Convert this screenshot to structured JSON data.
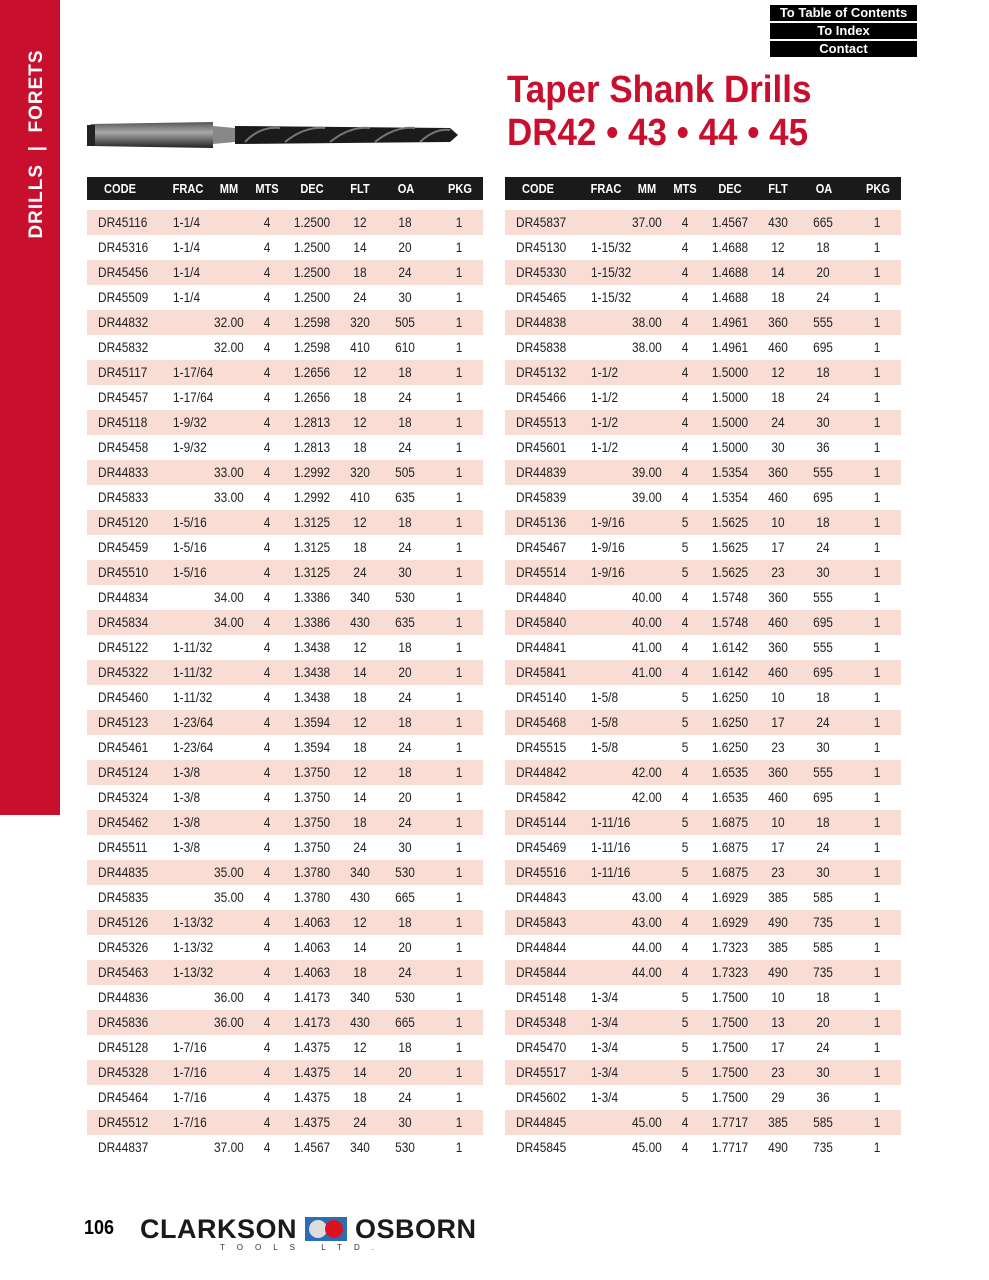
{
  "sidebar": {
    "label": "DRILLS  |  FORETS",
    "color": "#c8102e"
  },
  "nav": {
    "toc": "To Table of Contents",
    "index": "To Index",
    "contact": "Contact"
  },
  "title": {
    "line1": "Taper Shank Drills",
    "line2": "DR42 • 43 • 44 • 45",
    "color": "#c8102e"
  },
  "table": {
    "headers": [
      "CODE",
      "FRAC",
      "MM",
      "MTS",
      "DEC",
      "FLT",
      "OA",
      "PKG"
    ],
    "row_stripe_color": "#f9ddd4",
    "left": [
      [
        "DR45116",
        "1-1/4",
        "",
        "4",
        "1.2500",
        "12",
        "18",
        "1"
      ],
      [
        "DR45316",
        "1-1/4",
        "",
        "4",
        "1.2500",
        "14",
        "20",
        "1"
      ],
      [
        "DR45456",
        "1-1/4",
        "",
        "4",
        "1.2500",
        "18",
        "24",
        "1"
      ],
      [
        "DR45509",
        "1-1/4",
        "",
        "4",
        "1.2500",
        "24",
        "30",
        "1"
      ],
      [
        "DR44832",
        "",
        "32.00",
        "4",
        "1.2598",
        "320",
        "505",
        "1"
      ],
      [
        "DR45832",
        "",
        "32.00",
        "4",
        "1.2598",
        "410",
        "610",
        "1"
      ],
      [
        "DR45117",
        "1-17/64",
        "",
        "4",
        "1.2656",
        "12",
        "18",
        "1"
      ],
      [
        "DR45457",
        "1-17/64",
        "",
        "4",
        "1.2656",
        "18",
        "24",
        "1"
      ],
      [
        "DR45118",
        "1-9/32",
        "",
        "4",
        "1.2813",
        "12",
        "18",
        "1"
      ],
      [
        "DR45458",
        "1-9/32",
        "",
        "4",
        "1.2813",
        "18",
        "24",
        "1"
      ],
      [
        "DR44833",
        "",
        "33.00",
        "4",
        "1.2992",
        "320",
        "505",
        "1"
      ],
      [
        "DR45833",
        "",
        "33.00",
        "4",
        "1.2992",
        "410",
        "635",
        "1"
      ],
      [
        "DR45120",
        "1-5/16",
        "",
        "4",
        "1.3125",
        "12",
        "18",
        "1"
      ],
      [
        "DR45459",
        "1-5/16",
        "",
        "4",
        "1.3125",
        "18",
        "24",
        "1"
      ],
      [
        "DR45510",
        "1-5/16",
        "",
        "4",
        "1.3125",
        "24",
        "30",
        "1"
      ],
      [
        "DR44834",
        "",
        "34.00",
        "4",
        "1.3386",
        "340",
        "530",
        "1"
      ],
      [
        "DR45834",
        "",
        "34.00",
        "4",
        "1.3386",
        "430",
        "635",
        "1"
      ],
      [
        "DR45122",
        "1-11/32",
        "",
        "4",
        "1.3438",
        "12",
        "18",
        "1"
      ],
      [
        "DR45322",
        "1-11/32",
        "",
        "4",
        "1.3438",
        "14",
        "20",
        "1"
      ],
      [
        "DR45460",
        "1-11/32",
        "",
        "4",
        "1.3438",
        "18",
        "24",
        "1"
      ],
      [
        "DR45123",
        "1-23/64",
        "",
        "4",
        "1.3594",
        "12",
        "18",
        "1"
      ],
      [
        "DR45461",
        "1-23/64",
        "",
        "4",
        "1.3594",
        "18",
        "24",
        "1"
      ],
      [
        "DR45124",
        "1-3/8",
        "",
        "4",
        "1.3750",
        "12",
        "18",
        "1"
      ],
      [
        "DR45324",
        "1-3/8",
        "",
        "4",
        "1.3750",
        "14",
        "20",
        "1"
      ],
      [
        "DR45462",
        "1-3/8",
        "",
        "4",
        "1.3750",
        "18",
        "24",
        "1"
      ],
      [
        "DR45511",
        "1-3/8",
        "",
        "4",
        "1.3750",
        "24",
        "30",
        "1"
      ],
      [
        "DR44835",
        "",
        "35.00",
        "4",
        "1.3780",
        "340",
        "530",
        "1"
      ],
      [
        "DR45835",
        "",
        "35.00",
        "4",
        "1.3780",
        "430",
        "665",
        "1"
      ],
      [
        "DR45126",
        "1-13/32",
        "",
        "4",
        "1.4063",
        "12",
        "18",
        "1"
      ],
      [
        "DR45326",
        "1-13/32",
        "",
        "4",
        "1.4063",
        "14",
        "20",
        "1"
      ],
      [
        "DR45463",
        "1-13/32",
        "",
        "4",
        "1.4063",
        "18",
        "24",
        "1"
      ],
      [
        "DR44836",
        "",
        "36.00",
        "4",
        "1.4173",
        "340",
        "530",
        "1"
      ],
      [
        "DR45836",
        "",
        "36.00",
        "4",
        "1.4173",
        "430",
        "665",
        "1"
      ],
      [
        "DR45128",
        "1-7/16",
        "",
        "4",
        "1.4375",
        "12",
        "18",
        "1"
      ],
      [
        "DR45328",
        "1-7/16",
        "",
        "4",
        "1.4375",
        "14",
        "20",
        "1"
      ],
      [
        "DR45464",
        "1-7/16",
        "",
        "4",
        "1.4375",
        "18",
        "24",
        "1"
      ],
      [
        "DR45512",
        "1-7/16",
        "",
        "4",
        "1.4375",
        "24",
        "30",
        "1"
      ],
      [
        "DR44837",
        "",
        "37.00",
        "4",
        "1.4567",
        "340",
        "530",
        "1"
      ]
    ],
    "right": [
      [
        "DR45837",
        "",
        "37.00",
        "4",
        "1.4567",
        "430",
        "665",
        "1"
      ],
      [
        "DR45130",
        "1-15/32",
        "",
        "4",
        "1.4688",
        "12",
        "18",
        "1"
      ],
      [
        "DR45330",
        "1-15/32",
        "",
        "4",
        "1.4688",
        "14",
        "20",
        "1"
      ],
      [
        "DR45465",
        "1-15/32",
        "",
        "4",
        "1.4688",
        "18",
        "24",
        "1"
      ],
      [
        "DR44838",
        "",
        "38.00",
        "4",
        "1.4961",
        "360",
        "555",
        "1"
      ],
      [
        "DR45838",
        "",
        "38.00",
        "4",
        "1.4961",
        "460",
        "695",
        "1"
      ],
      [
        "DR45132",
        "1-1/2",
        "",
        "4",
        "1.5000",
        "12",
        "18",
        "1"
      ],
      [
        "DR45466",
        "1-1/2",
        "",
        "4",
        "1.5000",
        "18",
        "24",
        "1"
      ],
      [
        "DR45513",
        "1-1/2",
        "",
        "4",
        "1.5000",
        "24",
        "30",
        "1"
      ],
      [
        "DR45601",
        "1-1/2",
        "",
        "4",
        "1.5000",
        "30",
        "36",
        "1"
      ],
      [
        "DR44839",
        "",
        "39.00",
        "4",
        "1.5354",
        "360",
        "555",
        "1"
      ],
      [
        "DR45839",
        "",
        "39.00",
        "4",
        "1.5354",
        "460",
        "695",
        "1"
      ],
      [
        "DR45136",
        "1-9/16",
        "",
        "5",
        "1.5625",
        "10",
        "18",
        "1"
      ],
      [
        "DR45467",
        "1-9/16",
        "",
        "5",
        "1.5625",
        "17",
        "24",
        "1"
      ],
      [
        "DR45514",
        "1-9/16",
        "",
        "5",
        "1.5625",
        "23",
        "30",
        "1"
      ],
      [
        "DR44840",
        "",
        "40.00",
        "4",
        "1.5748",
        "360",
        "555",
        "1"
      ],
      [
        "DR45840",
        "",
        "40.00",
        "4",
        "1.5748",
        "460",
        "695",
        "1"
      ],
      [
        "DR44841",
        "",
        "41.00",
        "4",
        "1.6142",
        "360",
        "555",
        "1"
      ],
      [
        "DR45841",
        "",
        "41.00",
        "4",
        "1.6142",
        "460",
        "695",
        "1"
      ],
      [
        "DR45140",
        "1-5/8",
        "",
        "5",
        "1.6250",
        "10",
        "18",
        "1"
      ],
      [
        "DR45468",
        "1-5/8",
        "",
        "5",
        "1.6250",
        "17",
        "24",
        "1"
      ],
      [
        "DR45515",
        "1-5/8",
        "",
        "5",
        "1.6250",
        "23",
        "30",
        "1"
      ],
      [
        "DR44842",
        "",
        "42.00",
        "4",
        "1.6535",
        "360",
        "555",
        "1"
      ],
      [
        "DR45842",
        "",
        "42.00",
        "4",
        "1.6535",
        "460",
        "695",
        "1"
      ],
      [
        "DR45144",
        "1-11/16",
        "",
        "5",
        "1.6875",
        "10",
        "18",
        "1"
      ],
      [
        "DR45469",
        "1-11/16",
        "",
        "5",
        "1.6875",
        "17",
        "24",
        "1"
      ],
      [
        "DR45516",
        "1-11/16",
        "",
        "5",
        "1.6875",
        "23",
        "30",
        "1"
      ],
      [
        "DR44843",
        "",
        "43.00",
        "4",
        "1.6929",
        "385",
        "585",
        "1"
      ],
      [
        "DR45843",
        "",
        "43.00",
        "4",
        "1.6929",
        "490",
        "735",
        "1"
      ],
      [
        "DR44844",
        "",
        "44.00",
        "4",
        "1.7323",
        "385",
        "585",
        "1"
      ],
      [
        "DR45844",
        "",
        "44.00",
        "4",
        "1.7323",
        "490",
        "735",
        "1"
      ],
      [
        "DR45148",
        "1-3/4",
        "",
        "5",
        "1.7500",
        "10",
        "18",
        "1"
      ],
      [
        "DR45348",
        "1-3/4",
        "",
        "5",
        "1.7500",
        "13",
        "20",
        "1"
      ],
      [
        "DR45470",
        "1-3/4",
        "",
        "5",
        "1.7500",
        "17",
        "24",
        "1"
      ],
      [
        "DR45517",
        "1-3/4",
        "",
        "5",
        "1.7500",
        "23",
        "30",
        "1"
      ],
      [
        "DR45602",
        "1-3/4",
        "",
        "5",
        "1.7500",
        "29",
        "36",
        "1"
      ],
      [
        "DR44845",
        "",
        "45.00",
        "4",
        "1.7717",
        "385",
        "585",
        "1"
      ],
      [
        "DR45845",
        "",
        "45.00",
        "4",
        "1.7717",
        "490",
        "735",
        "1"
      ]
    ]
  },
  "footer": {
    "page_number": "106",
    "logo_left": "CLARKSON",
    "logo_right": "OSBORN",
    "logo_sub": "TOOLS LTD."
  }
}
